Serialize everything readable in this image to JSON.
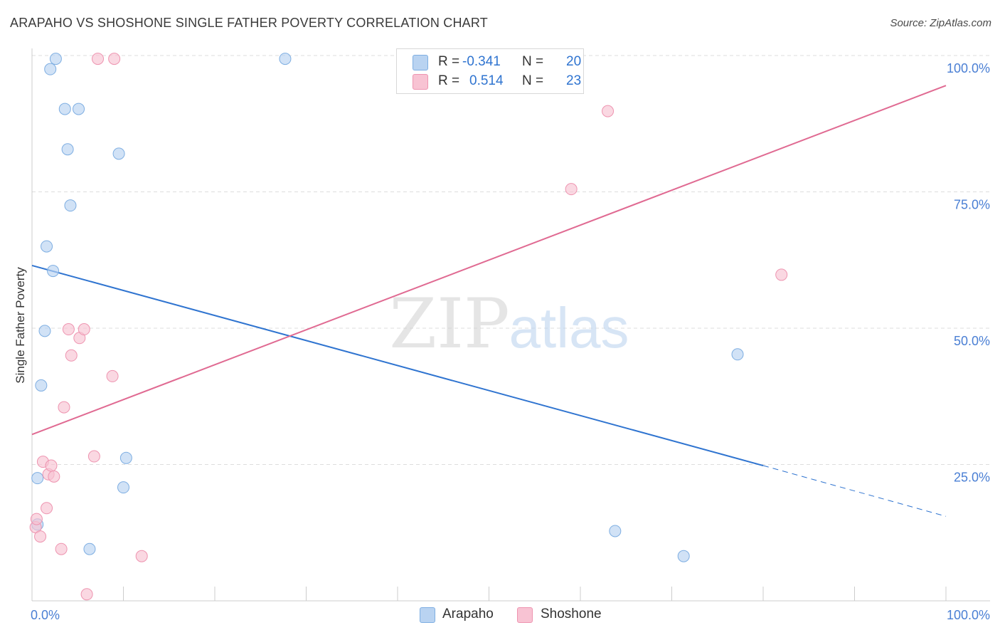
{
  "header": {
    "title": "ARAPAHO VS SHOSHONE SINGLE FATHER POVERTY CORRELATION CHART",
    "source": "Source: ZipAtlas.com"
  },
  "legend": {
    "arapaho": {
      "r_label": "R =",
      "r_value": "-0.341",
      "n_label": "N =",
      "n_value": "20"
    },
    "shoshone": {
      "r_label": "R =",
      "r_value": "0.514",
      "n_label": "N =",
      "n_value": "23"
    }
  },
  "bottom_legend": {
    "arapaho": "Arapaho",
    "shoshone": "Shoshone"
  },
  "watermark": {
    "zip": "ZIP",
    "atlas": "atlas"
  },
  "colors": {
    "arapaho_fill": "#b9d3f1",
    "arapaho_stroke": "#7eaee2",
    "arapaho_line": "#2f74d0",
    "shoshone_fill": "#f8c3d3",
    "shoshone_stroke": "#ee94b0",
    "shoshone_line": "#e06a92",
    "tick_label": "#4a7fd4",
    "grid": "#dddddd"
  },
  "chart_data": {
    "type": "scatter",
    "title": "ARAPAHO VS SHOSHONE SINGLE FATHER POVERTY CORRELATION CHART",
    "xlabel": "",
    "ylabel": "Single Father Poverty",
    "xlim": [
      0,
      100
    ],
    "ylim": [
      0,
      100
    ],
    "x_tick_labels": [
      "0.0%",
      "100.0%"
    ],
    "y_ticks": [
      25,
      50,
      75,
      100
    ],
    "y_tick_labels": [
      "25.0%",
      "50.0%",
      "75.0%",
      "100.0%"
    ],
    "series": [
      {
        "name": "Arapaho",
        "points": [
          {
            "x": 0.6,
            "y": 14.0
          },
          {
            "x": 0.6,
            "y": 22.5
          },
          {
            "x": 1.0,
            "y": 39.5
          },
          {
            "x": 1.4,
            "y": 49.5
          },
          {
            "x": 1.6,
            "y": 65.0
          },
          {
            "x": 2.0,
            "y": 97.5
          },
          {
            "x": 2.3,
            "y": 60.5
          },
          {
            "x": 2.6,
            "y": 99.4
          },
          {
            "x": 3.6,
            "y": 90.2
          },
          {
            "x": 3.9,
            "y": 82.8
          },
          {
            "x": 4.2,
            "y": 72.5
          },
          {
            "x": 5.1,
            "y": 90.2
          },
          {
            "x": 6.3,
            "y": 9.5
          },
          {
            "x": 9.5,
            "y": 82.0
          },
          {
            "x": 10.0,
            "y": 20.8
          },
          {
            "x": 10.3,
            "y": 26.2
          },
          {
            "x": 27.7,
            "y": 99.4
          },
          {
            "x": 63.8,
            "y": 12.8
          },
          {
            "x": 71.3,
            "y": 8.2
          },
          {
            "x": 77.2,
            "y": 45.2
          }
        ],
        "trend": {
          "x1": 0,
          "y1": 61.5,
          "x2": 80,
          "y2": 24.8,
          "dash_to_x": 100,
          "dash_to_y": 15.5
        }
      },
      {
        "name": "Shoshone",
        "points": [
          {
            "x": 0.4,
            "y": 13.5
          },
          {
            "x": 0.5,
            "y": 15.0
          },
          {
            "x": 0.9,
            "y": 11.8
          },
          {
            "x": 1.2,
            "y": 25.5
          },
          {
            "x": 1.6,
            "y": 17.0
          },
          {
            "x": 1.8,
            "y": 23.2
          },
          {
            "x": 2.1,
            "y": 24.8
          },
          {
            "x": 2.4,
            "y": 22.8
          },
          {
            "x": 3.2,
            "y": 9.5
          },
          {
            "x": 3.5,
            "y": 35.5
          },
          {
            "x": 4.0,
            "y": 49.8
          },
          {
            "x": 4.3,
            "y": 45.0
          },
          {
            "x": 5.2,
            "y": 48.2
          },
          {
            "x": 5.7,
            "y": 49.8
          },
          {
            "x": 6.0,
            "y": 1.2
          },
          {
            "x": 6.8,
            "y": 26.5
          },
          {
            "x": 7.2,
            "y": 99.4
          },
          {
            "x": 8.8,
            "y": 41.2
          },
          {
            "x": 9.0,
            "y": 99.4
          },
          {
            "x": 12.0,
            "y": 8.2
          },
          {
            "x": 59.0,
            "y": 75.5
          },
          {
            "x": 63.0,
            "y": 89.8
          },
          {
            "x": 82.0,
            "y": 59.8
          }
        ],
        "trend": {
          "x1": 0,
          "y1": 30.5,
          "x2": 100,
          "y2": 94.5
        }
      }
    ]
  }
}
